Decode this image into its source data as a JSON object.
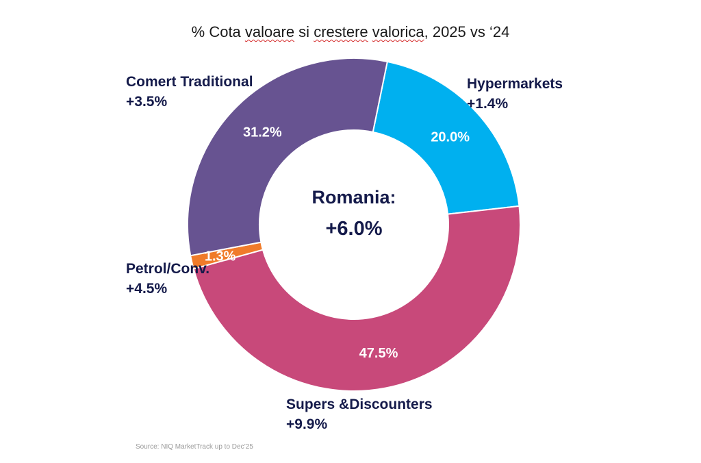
{
  "chart_data": {
    "type": "donut",
    "title_parts": [
      "% Cota ",
      "valoare",
      " si ",
      "crestere",
      " ",
      "valorica",
      ", 2025 vs ‘24"
    ],
    "center_label": "Romania:",
    "center_value": "+6.0%",
    "segments": [
      {
        "name": "Hypermarkets",
        "share": 20.0,
        "share_label": "20.0%",
        "growth_label": "+1.4%",
        "color": "#00b0ef"
      },
      {
        "name": "Supers &Discounters",
        "share": 47.5,
        "share_label": "47.5%",
        "growth_label": "+9.9%",
        "color": "#c8497a"
      },
      {
        "name": "Petrol/Conv.",
        "share": 1.3,
        "share_label": "1.3%",
        "growth_label": "+4.5%",
        "color": "#f07b2a"
      },
      {
        "name": "Comert Traditional",
        "share": 31.2,
        "share_label": "31.2%",
        "growth_label": "+3.5%",
        "color": "#675391"
      }
    ],
    "source": "Source: NIQ MarketTrack up to Dec’25"
  }
}
